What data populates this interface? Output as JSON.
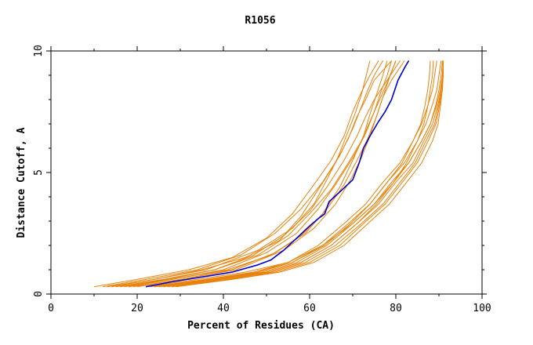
{
  "chart_data": {
    "type": "line",
    "title": "R1056",
    "xlabel": "Percent of Residues (CA)",
    "ylabel": "Distance Cutoff, A",
    "xlim": [
      0,
      100
    ],
    "ylim": [
      0,
      10
    ],
    "x_ticks": [
      "0",
      "20",
      "40",
      "60",
      "80",
      "100"
    ],
    "y_ticks": [
      "0",
      "5",
      "10"
    ],
    "grid": false,
    "colors": {
      "highlight": "#0000cc",
      "others": "#e8820a",
      "axis": "#000000"
    },
    "highlight": {
      "x": [
        22,
        28,
        35,
        42,
        48,
        51,
        54,
        57,
        60,
        62,
        63.5,
        64.5,
        67,
        70,
        71.5,
        72.5,
        74,
        76,
        77.5,
        79,
        80.5,
        82,
        83
      ],
      "y": [
        0.3,
        0.5,
        0.7,
        0.9,
        1.2,
        1.4,
        1.8,
        2.3,
        2.8,
        3.1,
        3.3,
        3.8,
        4.2,
        4.7,
        5.4,
        6.0,
        6.5,
        7.1,
        7.5,
        8.0,
        8.8,
        9.3,
        9.6
      ]
    },
    "series": [
      {
        "x": [
          10,
          20,
          32,
          42,
          50,
          56,
          61,
          65,
          68,
          70,
          72,
          74,
          76
        ],
        "y": [
          0.3,
          0.6,
          1.0,
          1.5,
          2.3,
          3.3,
          4.5,
          5.5,
          6.5,
          7.5,
          8.3,
          9.0,
          9.6
        ]
      },
      {
        "x": [
          12,
          22,
          34,
          44,
          52,
          58,
          63,
          67,
          70,
          72,
          73.5,
          75,
          77
        ],
        "y": [
          0.3,
          0.6,
          1.0,
          1.6,
          2.5,
          3.5,
          4.6,
          5.7,
          6.8,
          7.7,
          8.4,
          9.0,
          9.6
        ]
      },
      {
        "x": [
          14,
          24,
          35,
          45,
          53,
          58,
          62,
          66,
          69,
          71,
          73,
          75,
          79
        ],
        "y": [
          0.3,
          0.6,
          1.0,
          1.5,
          2.2,
          3.2,
          4.3,
          5.4,
          6.4,
          7.3,
          8.0,
          8.8,
          9.6
        ]
      },
      {
        "x": [
          15,
          26,
          38,
          47,
          54,
          60,
          64,
          68,
          71,
          73,
          75,
          78,
          81
        ],
        "y": [
          0.3,
          0.6,
          1.0,
          1.6,
          2.4,
          3.4,
          4.4,
          5.5,
          6.5,
          7.3,
          8.0,
          8.8,
          9.6
        ]
      },
      {
        "x": [
          16,
          27,
          38,
          48,
          55,
          60,
          65,
          69,
          72,
          74,
          76,
          78,
          80
        ],
        "y": [
          0.3,
          0.6,
          1.0,
          1.6,
          2.4,
          3.3,
          4.3,
          5.4,
          6.3,
          7.1,
          7.9,
          8.7,
          9.6
        ]
      },
      {
        "x": [
          18,
          28,
          40,
          50,
          57,
          62,
          66,
          70,
          73,
          75,
          76.5,
          78,
          79
        ],
        "y": [
          0.3,
          0.6,
          1.0,
          1.7,
          2.5,
          3.5,
          4.5,
          5.6,
          6.6,
          7.5,
          8.3,
          9.0,
          9.6
        ]
      },
      {
        "x": [
          17,
          28,
          41,
          51,
          58,
          63,
          67,
          70,
          72.5,
          74,
          75.5,
          77,
          78
        ],
        "y": [
          0.3,
          0.6,
          1.0,
          1.6,
          2.4,
          3.3,
          4.4,
          5.5,
          6.5,
          7.4,
          8.2,
          9.0,
          9.6
        ]
      },
      {
        "x": [
          20,
          30,
          42,
          52,
          59,
          64,
          68,
          71,
          73.5,
          75.5,
          77,
          79,
          82
        ],
        "y": [
          0.3,
          0.6,
          1.0,
          1.7,
          2.5,
          3.5,
          4.5,
          5.5,
          6.4,
          7.3,
          8.1,
          8.8,
          9.6
        ]
      },
      {
        "x": [
          19,
          30,
          43,
          54,
          61,
          66,
          69.5,
          72,
          74,
          75.5,
          77,
          78.5,
          80
        ],
        "y": [
          0.3,
          0.6,
          1.0,
          1.8,
          2.7,
          3.7,
          4.7,
          5.6,
          6.5,
          7.3,
          8.1,
          8.9,
          9.6
        ]
      },
      {
        "x": [
          13,
          24,
          36,
          48,
          56,
          61,
          64,
          66.5,
          68.5,
          70.5,
          72,
          73,
          74
        ],
        "y": [
          0.3,
          0.6,
          1.0,
          1.8,
          2.7,
          3.7,
          4.7,
          5.6,
          6.5,
          7.4,
          8.2,
          8.9,
          9.6
        ]
      },
      {
        "x": [
          23,
          36,
          47,
          55,
          62,
          68,
          73,
          77,
          81,
          84,
          86,
          87.5,
          88.5,
          89,
          89.5
        ],
        "y": [
          0.3,
          0.6,
          0.9,
          1.3,
          2.0,
          2.9,
          3.7,
          4.6,
          5.4,
          6.3,
          7.0,
          7.8,
          8.4,
          9.0,
          9.6
        ]
      },
      {
        "x": [
          24,
          37,
          48,
          56,
          63,
          69,
          74,
          78,
          82,
          85,
          87,
          88.5,
          89.5,
          90,
          90.5
        ],
        "y": [
          0.3,
          0.6,
          0.9,
          1.3,
          2.0,
          2.9,
          3.7,
          4.6,
          5.4,
          6.3,
          7.0,
          7.8,
          8.4,
          9.0,
          9.6
        ]
      },
      {
        "x": [
          25,
          38,
          49,
          57,
          64,
          70,
          75,
          79,
          83,
          86,
          88,
          89.5,
          90.3,
          90.8,
          91
        ],
        "y": [
          0.3,
          0.6,
          0.9,
          1.3,
          2.0,
          2.9,
          3.7,
          4.6,
          5.4,
          6.3,
          7.0,
          7.8,
          8.4,
          9.0,
          9.6
        ]
      },
      {
        "x": [
          26,
          39,
          50,
          58,
          65,
          71,
          76,
          80,
          84,
          86.5,
          88.5,
          89.8,
          90.5,
          90.8,
          91
        ],
        "y": [
          0.3,
          0.6,
          0.9,
          1.3,
          2.0,
          2.9,
          3.7,
          4.6,
          5.4,
          6.3,
          7.0,
          7.8,
          8.4,
          9.0,
          9.6
        ]
      },
      {
        "x": [
          27,
          40,
          51,
          59,
          66,
          72,
          77,
          81,
          84.5,
          87,
          89,
          90,
          90.6,
          91,
          91
        ],
        "y": [
          0.3,
          0.6,
          0.9,
          1.3,
          2.0,
          2.9,
          3.7,
          4.6,
          5.4,
          6.3,
          7.0,
          7.8,
          8.4,
          9.0,
          9.6
        ]
      },
      {
        "x": [
          25,
          37,
          50,
          58,
          65,
          71,
          75.5,
          79.5,
          82.5,
          85,
          86.5,
          87.5,
          88,
          88.5,
          88.7
        ],
        "y": [
          0.3,
          0.6,
          0.9,
          1.3,
          2.0,
          2.9,
          3.7,
          4.6,
          5.4,
          6.3,
          7.0,
          7.8,
          8.4,
          9.0,
          9.6
        ]
      },
      {
        "x": [
          28,
          41,
          52,
          60,
          67,
          72.5,
          77.5,
          81.5,
          85,
          87.5,
          89.3,
          90.2,
          90.6,
          90.9,
          91
        ],
        "y": [
          0.3,
          0.6,
          0.9,
          1.3,
          2.0,
          2.9,
          3.7,
          4.6,
          5.4,
          6.3,
          7.0,
          7.8,
          8.4,
          9.0,
          9.6
        ]
      },
      {
        "x": [
          24,
          36,
          47,
          56,
          63.5,
          69.5,
          74,
          78,
          81.5,
          84,
          85.8,
          86.8,
          87.4,
          87.8,
          88
        ],
        "y": [
          0.3,
          0.6,
          0.9,
          1.3,
          2.0,
          2.9,
          3.7,
          4.6,
          5.4,
          6.3,
          7.0,
          7.8,
          8.4,
          9.0,
          9.6
        ]
      },
      {
        "x": [
          29,
          42,
          53,
          61,
          68,
          73.5,
          78.5,
          82.5,
          86,
          88.5,
          89.8,
          90.4,
          90.8,
          91,
          91
        ],
        "y": [
          0.3,
          0.6,
          0.9,
          1.3,
          2.0,
          2.9,
          3.7,
          4.6,
          5.4,
          6.3,
          7.0,
          7.8,
          8.4,
          9.0,
          9.6
        ]
      },
      {
        "x": [
          22,
          34,
          45,
          55,
          63,
          70,
          75,
          79.5,
          83,
          86,
          88,
          89.3,
          90,
          90.5,
          90.8
        ],
        "y": [
          0.3,
          0.6,
          0.9,
          1.3,
          2.0,
          2.9,
          3.7,
          4.6,
          5.4,
          6.3,
          7.0,
          7.8,
          8.4,
          9.0,
          9.6
        ]
      }
    ]
  }
}
